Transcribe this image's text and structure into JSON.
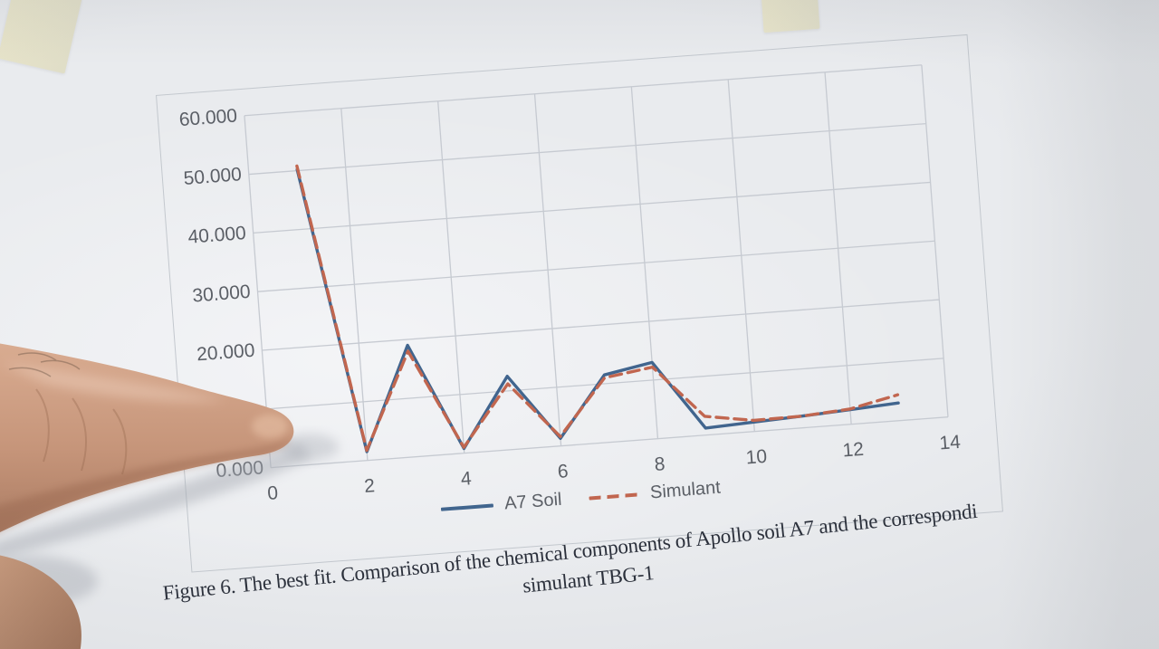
{
  "chart_data": {
    "type": "line",
    "title": "",
    "xlabel": "",
    "ylabel": "",
    "x": [
      1,
      2,
      3,
      4,
      5,
      6,
      7,
      8,
      9,
      10,
      11,
      12,
      13
    ],
    "series": [
      {
        "name": "A7 Soil",
        "line_style": "solid",
        "color": "#41658e",
        "values": [
          50.2,
          1.5,
          19.0,
          0.8,
          12.5,
          1.3,
          11.5,
          13.0,
          1.2,
          1.6,
          2.0,
          2.5,
          3.0
        ]
      },
      {
        "name": "Simulant",
        "line_style": "dashed",
        "color": "#c1664f",
        "values": [
          50.8,
          1.7,
          18.0,
          1.0,
          11.2,
          1.6,
          11.0,
          12.2,
          3.2,
          1.9,
          2.0,
          2.6,
          4.4
        ]
      }
    ],
    "xlim": [
      0,
      14
    ],
    "ylim": [
      0,
      60
    ],
    "grid": true,
    "legend_position": "bottom",
    "x_gridline_values": [
      0,
      2,
      4,
      6,
      8,
      10,
      12,
      14
    ],
    "y_gridline_values": [
      0,
      10,
      20,
      30,
      40,
      50,
      60
    ],
    "x_ticks": [
      {
        "label": "0",
        "value": 0
      },
      {
        "label": "2",
        "value": 2
      },
      {
        "label": "4",
        "value": 4
      },
      {
        "label": "6",
        "value": 6
      },
      {
        "label": "8",
        "value": 8
      },
      {
        "label": "10",
        "value": 10
      },
      {
        "label": "12",
        "value": 12
      },
      {
        "label": "14",
        "value": 14
      }
    ],
    "y_ticks": [
      {
        "label": "60.000",
        "value": 60
      },
      {
        "label": "50.000",
        "value": 50
      },
      {
        "label": "40.000",
        "value": 40
      },
      {
        "label": "30.000",
        "value": 30
      },
      {
        "label": "20.000",
        "value": 20
      },
      {
        "label": "0.000",
        "value": 0
      }
    ],
    "note_hidden_tick": "10.000 tick label obscured by finger in photo"
  },
  "caption": {
    "line1": "Figure 6. The best fit. Comparison of the chemical components of Apollo soil A7 and the correspondi",
    "line2": "simulant TBG-1"
  },
  "colors": {
    "paper": "#e9ebee",
    "grid": "#c6cad1",
    "axis_text": "#5b5f66",
    "caption_text": "#2b303b",
    "a7_soil_line": "#41658e",
    "simulant_line": "#c1664f",
    "tape": "#e7e4c9",
    "skin": "#c99b7f"
  },
  "photo_elements": [
    "pointing-finger",
    "tape-top-left",
    "tape-top-right",
    "paper-sheet"
  ]
}
